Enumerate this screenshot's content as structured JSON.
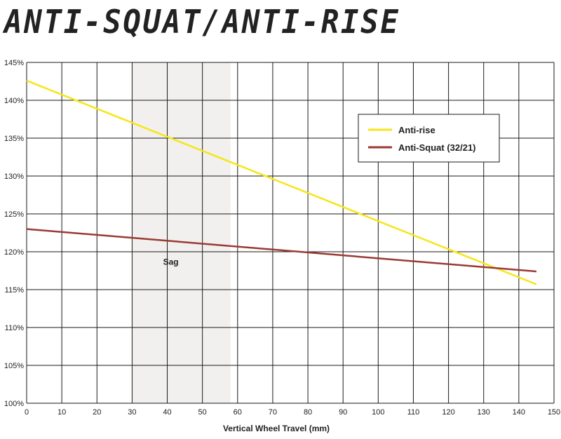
{
  "chart_data": {
    "type": "line",
    "title": "ANTI-SQUAT/ANTI-RISE",
    "xlabel": "Vertical Wheel Travel (mm)",
    "ylabel": "",
    "xlim": [
      0,
      150
    ],
    "ylim": [
      100,
      145
    ],
    "x_ticks": [
      0,
      10,
      20,
      30,
      40,
      50,
      60,
      70,
      80,
      90,
      100,
      110,
      120,
      130,
      140,
      150
    ],
    "y_ticks": [
      100,
      105,
      110,
      115,
      120,
      125,
      130,
      135,
      140,
      145
    ],
    "y_tick_suffix": "%",
    "grid": true,
    "legend_position": "top-right",
    "shaded_region": {
      "x_start": 30,
      "x_end": 58,
      "label": "Sag",
      "color": "#f1f0ef"
    },
    "series": [
      {
        "name": "Anti-rise",
        "color": "#f5e61b",
        "x": [
          0,
          145
        ],
        "y": [
          142.6,
          115.7
        ]
      },
      {
        "name": "Anti-Squat (32/21)",
        "color": "#9b3a33",
        "x": [
          0,
          145
        ],
        "y": [
          123.0,
          117.4
        ]
      }
    ]
  }
}
